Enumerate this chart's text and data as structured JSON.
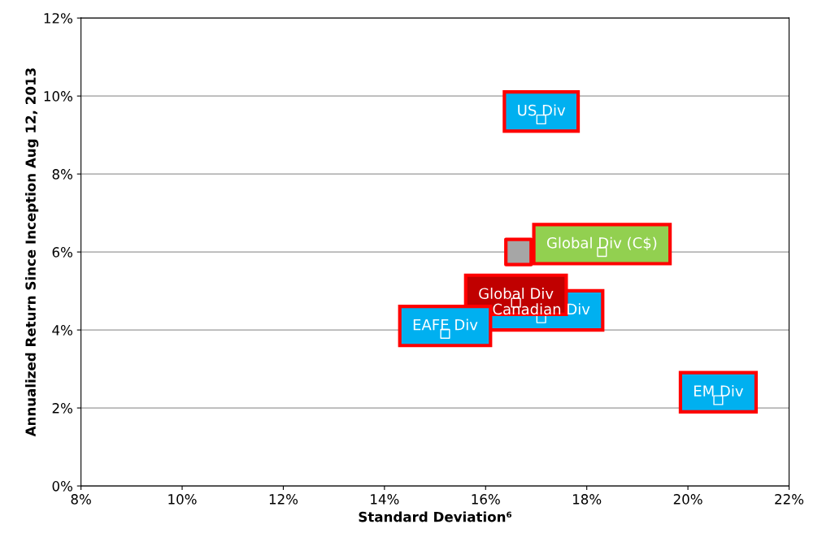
{
  "chart_data": {
    "type": "scatter",
    "xlabel": "Standard Deviation⁶",
    "ylabel": "Annualized Return Since Inception Aug 12, 2013",
    "xlim": [
      8,
      22
    ],
    "xticks": [
      {
        "value": 8,
        "label": "8%"
      },
      {
        "value": 10,
        "label": "10%"
      },
      {
        "value": 12,
        "label": "12%"
      },
      {
        "value": 14,
        "label": "14%"
      },
      {
        "value": 16,
        "label": "16%"
      },
      {
        "value": 18,
        "label": "18%"
      },
      {
        "value": 20,
        "label": "20%"
      },
      {
        "value": 22,
        "label": "22%"
      }
    ],
    "ylim": [
      0,
      12
    ],
    "yticks": [
      {
        "value": 0,
        "label": "0%"
      },
      {
        "value": 2,
        "label": "2%"
      },
      {
        "value": 4,
        "label": "4%"
      },
      {
        "value": 6,
        "label": "6%"
      },
      {
        "value": 8,
        "label": "8%"
      },
      {
        "value": 10,
        "label": "10%"
      },
      {
        "value": 12,
        "label": "12%"
      }
    ],
    "grid": "y",
    "legend": false,
    "series": [
      {
        "name": "US Div",
        "color": "#00b0f0",
        "x": [
          17.1
        ],
        "values": [
          9.4
        ]
      },
      {
        "color": "#a6a6a6",
        "x": [
          16.65
        ],
        "values": [
          6.0
        ]
      },
      {
        "name": "Global Div (C$)",
        "color": "#92d050",
        "x": [
          18.3
        ],
        "values": [
          6.0
        ]
      },
      {
        "name": "Canadian Div",
        "color": "#00b0f0",
        "x": [
          17.1
        ],
        "values": [
          4.3
        ]
      },
      {
        "name": "Global Div",
        "color": "#c00000",
        "x": [
          16.6
        ],
        "values": [
          4.7
        ]
      },
      {
        "name": "EAFE Div",
        "color": "#00b0f0",
        "x": [
          15.2
        ],
        "values": [
          3.9
        ]
      },
      {
        "name": "EM Div",
        "color": "#00b0f0",
        "x": [
          20.6
        ],
        "values": [
          2.2
        ]
      }
    ]
  }
}
